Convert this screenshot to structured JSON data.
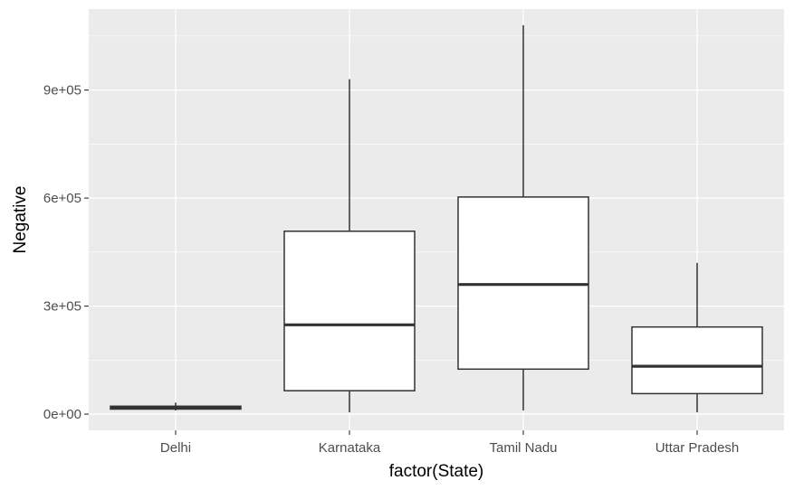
{
  "chart_data": {
    "type": "boxplot",
    "xlabel": "factor(State)",
    "ylabel": "Negative",
    "categories": [
      "Delhi",
      "Karnataka",
      "Tamil Nadu",
      "Uttar Pradesh"
    ],
    "boxes": [
      {
        "category": "Delhi",
        "min": 10000,
        "q1": 14000,
        "median": 18000,
        "q3": 22000,
        "max": 32000
      },
      {
        "category": "Karnataka",
        "min": 5000,
        "q1": 65000,
        "median": 248000,
        "q3": 508000,
        "max": 930000
      },
      {
        "category": "Tamil Nadu",
        "min": 10000,
        "q1": 125000,
        "median": 360000,
        "q3": 603000,
        "max": 1080000
      },
      {
        "category": "Uttar Pradesh",
        "min": 5000,
        "q1": 57000,
        "median": 133000,
        "q3": 242000,
        "max": 420000
      }
    ],
    "ylim": [
      -45000,
      1125000
    ],
    "yticks": [
      0,
      300000,
      600000,
      900000
    ],
    "ytick_labels": [
      "0e+00",
      "3e+05",
      "6e+05",
      "9e+05"
    ],
    "grid": true,
    "colors": {
      "panel": "#ebebeb",
      "grid_major": "#ffffff",
      "box_fill": "#ffffff",
      "box_line": "#333333"
    }
  }
}
